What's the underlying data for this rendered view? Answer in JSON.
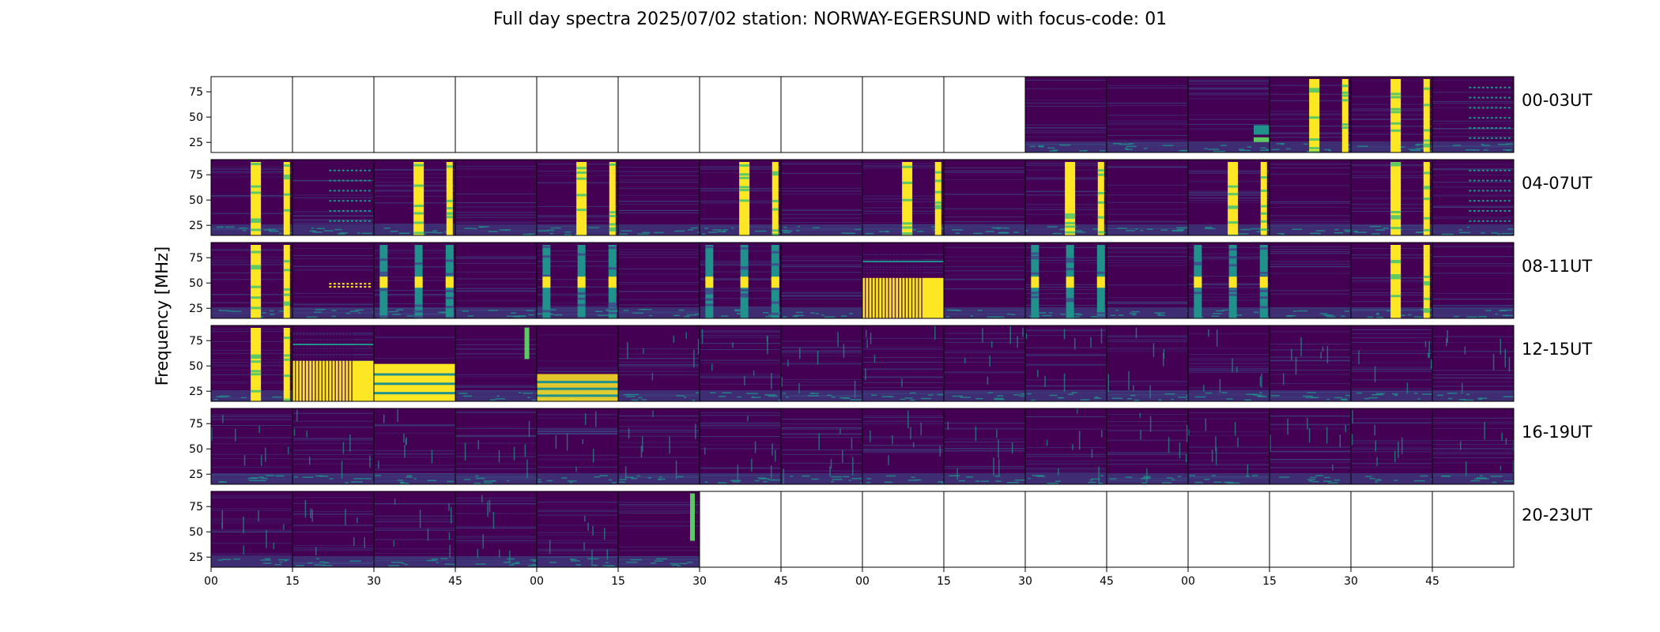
{
  "title": "Full day spectra 2025/07/02 station: NORWAY-EGERSUND with focus-code: 01",
  "colors": {
    "low": "#440154",
    "mid": "#3b528b",
    "teal": "#21918c",
    "green": "#5ec962",
    "high": "#fde725"
  },
  "chart_data": {
    "type": "heatmap",
    "title": "Full day spectra 2025/07/02 station: NORWAY-EGERSUND with focus-code: 01",
    "ylabel": "Frequency [MHz]",
    "yticks": [
      25,
      50,
      75
    ],
    "ylim": [
      15,
      90
    ],
    "xticks": [
      "00",
      "15",
      "30",
      "45",
      "00",
      "15",
      "30",
      "45",
      "00",
      "15",
      "30",
      "45",
      "00",
      "15",
      "30",
      "45"
    ],
    "x_unit": "minutes",
    "panel_minutes": 15,
    "panels_per_row": 16,
    "row_labels": [
      "00-03UT",
      "04-07UT",
      "08-11UT",
      "12-15UT",
      "16-19UT",
      "20-23UT"
    ],
    "colormap": "viridis",
    "rows": [
      {
        "label": "00-03UT",
        "panels": [
          "empty",
          "empty",
          "empty",
          "empty",
          "empty",
          "empty",
          "empty",
          "empty",
          "empty",
          "empty",
          "quiet",
          "quiet",
          "quiet-burst-low",
          "bursts",
          "bursts",
          "dots"
        ]
      },
      {
        "label": "04-07UT",
        "panels": [
          "bursts",
          "dots",
          "bursts",
          "quiet",
          "bursts",
          "quiet",
          "bursts",
          "quiet",
          "bursts",
          "quiet",
          "bursts",
          "quiet",
          "bursts",
          "quiet",
          "bursts",
          "dots"
        ]
      },
      {
        "label": "08-11UT",
        "panels": [
          "bursts",
          "dots-mid",
          "stripes",
          "quiet",
          "stripes",
          "quiet",
          "stripes",
          "quiet",
          "broadband",
          "quiet",
          "stripes",
          "quiet",
          "stripes",
          "quiet",
          "bursts",
          "quiet"
        ]
      },
      {
        "label": "12-15UT",
        "panels": [
          "bursts",
          "broadband",
          "bands",
          "spike",
          "bands-low",
          "noisy",
          "noisy",
          "noisy",
          "noisy",
          "noisy",
          "noisy",
          "noisy",
          "noisy",
          "noisy",
          "noisy",
          "noisy"
        ]
      },
      {
        "label": "16-19UT",
        "panels": [
          "noisy",
          "noisy",
          "noisy",
          "noisy",
          "noisy",
          "noisy",
          "noisy",
          "noisy",
          "noisy",
          "noisy",
          "noisy",
          "noisy",
          "noisy",
          "noisy",
          "noisy",
          "noisy"
        ]
      },
      {
        "label": "20-23UT",
        "panels": [
          "noisy",
          "noisy",
          "noisy",
          "noisy",
          "noisy",
          "spike-end",
          "empty",
          "empty",
          "empty",
          "empty",
          "empty",
          "empty",
          "empty",
          "empty",
          "empty",
          "empty"
        ]
      }
    ]
  }
}
